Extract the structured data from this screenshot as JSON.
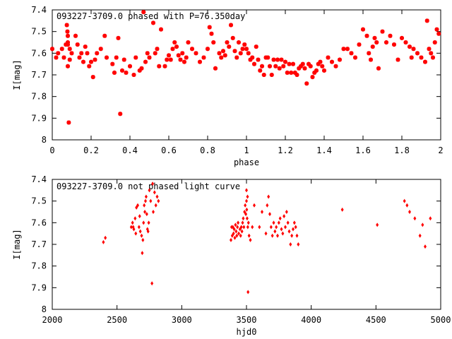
{
  "chart_data": [
    {
      "type": "scatter",
      "title": "093227-3709.0 phased with P=76.350day",
      "xlabel": "phase",
      "ylabel": "I[mag]",
      "xlim": [
        0,
        2
      ],
      "ylim": [
        7.4,
        8.0
      ],
      "y_inverted": true,
      "x_ticks": [
        "0",
        "0.2",
        "0.4",
        "0.6",
        "0.8",
        "1",
        "1.2",
        "1.4",
        "1.6",
        "1.8",
        "2"
      ],
      "y_ticks": [
        "7.4",
        "7.5",
        "7.6",
        "7.7",
        "7.8",
        "7.9",
        "8"
      ],
      "marker_color": "#ff0000",
      "marker": "star",
      "grid": false,
      "x": [
        0.0,
        0.02,
        0.03,
        0.05,
        0.06,
        0.07,
        0.075,
        0.078,
        0.08,
        0.08,
        0.08,
        0.08,
        0.085,
        0.09,
        0.09,
        0.1,
        0.12,
        0.13,
        0.14,
        0.15,
        0.16,
        0.17,
        0.18,
        0.19,
        0.2,
        0.21,
        0.22,
        0.23,
        0.25,
        0.27,
        0.28,
        0.31,
        0.32,
        0.33,
        0.34,
        0.35,
        0.36,
        0.37,
        0.38,
        0.4,
        0.42,
        0.43,
        0.45,
        0.46,
        0.47,
        0.48,
        0.49,
        0.5,
        0.52,
        0.53,
        0.54,
        0.55,
        0.56,
        0.58,
        0.59,
        0.6,
        0.61,
        0.62,
        0.63,
        0.64,
        0.65,
        0.66,
        0.67,
        0.68,
        0.69,
        0.7,
        0.72,
        0.74,
        0.76,
        0.78,
        0.8,
        0.81,
        0.82,
        0.83,
        0.84,
        0.86,
        0.87,
        0.88,
        0.89,
        0.9,
        0.91,
        0.92,
        0.93,
        0.94,
        0.95,
        0.96,
        0.97,
        0.98,
        0.99,
        1.0,
        1.01,
        1.02,
        1.03,
        1.04,
        1.05,
        1.06,
        1.07,
        1.08,
        1.09,
        1.1,
        1.11,
        1.12,
        1.13,
        1.14,
        1.15,
        1.16,
        1.17,
        1.18,
        1.19,
        1.2,
        1.21,
        1.22,
        1.23,
        1.24,
        1.25,
        1.26,
        1.27,
        1.28,
        1.29,
        1.3,
        1.31,
        1.32,
        1.33,
        1.34,
        1.35,
        1.36,
        1.37,
        1.38,
        1.39,
        1.4,
        1.42,
        1.44,
        1.46,
        1.48,
        1.5,
        1.52,
        1.54,
        1.56,
        1.58,
        1.6,
        1.62,
        1.63,
        1.64,
        1.65,
        1.66,
        1.67,
        1.68,
        1.7,
        1.72,
        1.74,
        1.76,
        1.78,
        1.8,
        1.82,
        1.84,
        1.85,
        1.86,
        1.88,
        1.9,
        1.92,
        1.93,
        1.94,
        1.95,
        1.96,
        1.97,
        1.98,
        1.99
      ],
      "y": [
        7.58,
        7.62,
        7.6,
        7.58,
        7.62,
        7.56,
        7.47,
        7.5,
        7.52,
        7.55,
        7.56,
        7.66,
        7.92,
        7.58,
        7.63,
        7.6,
        7.52,
        7.56,
        7.62,
        7.6,
        7.64,
        7.57,
        7.6,
        7.66,
        7.64,
        7.71,
        7.63,
        7.6,
        7.58,
        7.52,
        7.62,
        7.65,
        7.69,
        7.62,
        7.53,
        7.88,
        7.68,
        7.63,
        7.69,
        7.66,
        7.7,
        7.62,
        7.68,
        7.67,
        7.41,
        7.64,
        7.6,
        7.62,
        7.46,
        7.6,
        7.58,
        7.66,
        7.49,
        7.66,
        7.63,
        7.61,
        7.63,
        7.58,
        7.55,
        7.57,
        7.61,
        7.63,
        7.6,
        7.64,
        7.62,
        7.55,
        7.58,
        7.6,
        7.64,
        7.62,
        7.58,
        7.48,
        7.51,
        7.55,
        7.67,
        7.6,
        7.62,
        7.59,
        7.61,
        7.55,
        7.57,
        7.47,
        7.53,
        7.59,
        7.62,
        7.55,
        7.6,
        7.58,
        7.56,
        7.58,
        7.6,
        7.63,
        7.62,
        7.65,
        7.57,
        7.63,
        7.68,
        7.66,
        7.7,
        7.62,
        7.62,
        7.66,
        7.7,
        7.63,
        7.66,
        7.63,
        7.67,
        7.63,
        7.66,
        7.64,
        7.69,
        7.65,
        7.69,
        7.65,
        7.69,
        7.7,
        7.67,
        7.66,
        7.65,
        7.67,
        7.74,
        7.65,
        7.66,
        7.71,
        7.69,
        7.68,
        7.65,
        7.64,
        7.66,
        7.68,
        7.62,
        7.64,
        7.66,
        7.63,
        7.58,
        7.58,
        7.6,
        7.62,
        7.56,
        7.49,
        7.52,
        7.6,
        7.63,
        7.57,
        7.53,
        7.55,
        7.67,
        7.5,
        7.55,
        7.52,
        7.56,
        7.63,
        7.53,
        7.55,
        7.57,
        7.62,
        7.58,
        7.6,
        7.62,
        7.64,
        7.45,
        7.58,
        7.6,
        7.62,
        7.55,
        7.49,
        7.51
      ]
    },
    {
      "type": "scatter",
      "title": "093227-3709.0 not phased light curve",
      "xlabel": "hjd0",
      "ylabel": "I[mag]",
      "xlim": [
        2000,
        5000
      ],
      "ylim": [
        7.4,
        8.0
      ],
      "y_inverted": true,
      "x_ticks": [
        "2000",
        "2500",
        "3000",
        "3500",
        "4000",
        "4500",
        "5000"
      ],
      "y_ticks": [
        "7.4",
        "7.5",
        "7.6",
        "7.7",
        "7.8",
        "7.9",
        "8"
      ],
      "marker_color": "#ff0000",
      "marker": "diamond",
      "grid": false,
      "x": [
        2395,
        2410,
        2610,
        2620,
        2625,
        2630,
        2640,
        2645,
        2650,
        2660,
        2670,
        2675,
        2680,
        2690,
        2695,
        2700,
        2705,
        2710,
        2715,
        2720,
        2725,
        2730,
        2735,
        2740,
        2745,
        2750,
        2760,
        2770,
        2775,
        2780,
        2790,
        2800,
        2810,
        2820,
        3380,
        3385,
        3390,
        3395,
        3400,
        3405,
        3410,
        3415,
        3420,
        3425,
        3430,
        3435,
        3440,
        3450,
        3455,
        3460,
        3465,
        3470,
        3475,
        3480,
        3485,
        3490,
        3495,
        3500,
        3500,
        3502,
        3505,
        3508,
        3510,
        3512,
        3515,
        3520,
        3530,
        3545,
        3560,
        3600,
        3620,
        3650,
        3660,
        3670,
        3680,
        3690,
        3700,
        3710,
        3720,
        3730,
        3740,
        3750,
        3760,
        3770,
        3780,
        3790,
        3800,
        3810,
        3820,
        3830,
        3840,
        3850,
        3860,
        3870,
        3880,
        3890,
        3900,
        4240,
        4510,
        4720,
        4740,
        4760,
        4800,
        4840,
        4860,
        4880,
        4920
      ],
      "y": [
        7.69,
        7.67,
        7.62,
        7.6,
        7.62,
        7.63,
        7.58,
        7.65,
        7.53,
        7.52,
        7.62,
        7.57,
        7.64,
        7.66,
        7.74,
        7.68,
        7.6,
        7.52,
        7.55,
        7.5,
        7.48,
        7.56,
        7.63,
        7.64,
        7.6,
        7.45,
        7.5,
        7.88,
        7.42,
        7.55,
        7.46,
        7.52,
        7.48,
        7.5,
        7.68,
        7.62,
        7.66,
        7.62,
        7.65,
        7.63,
        7.67,
        7.61,
        7.64,
        7.66,
        7.62,
        7.6,
        7.65,
        7.63,
        7.66,
        7.62,
        7.64,
        7.6,
        7.58,
        7.62,
        7.55,
        7.52,
        7.56,
        7.45,
        7.5,
        7.54,
        7.58,
        7.48,
        7.62,
        7.92,
        7.6,
        7.66,
        7.68,
        7.62,
        7.52,
        7.62,
        7.55,
        7.65,
        7.52,
        7.48,
        7.56,
        7.62,
        7.66,
        7.6,
        7.64,
        7.62,
        7.66,
        7.6,
        7.58,
        7.63,
        7.65,
        7.57,
        7.62,
        7.55,
        7.6,
        7.64,
        7.7,
        7.66,
        7.63,
        7.6,
        7.62,
        7.66,
        7.7,
        7.54,
        7.61,
        7.5,
        7.52,
        7.55,
        7.58,
        7.66,
        7.61,
        7.71,
        7.58
      ]
    }
  ]
}
